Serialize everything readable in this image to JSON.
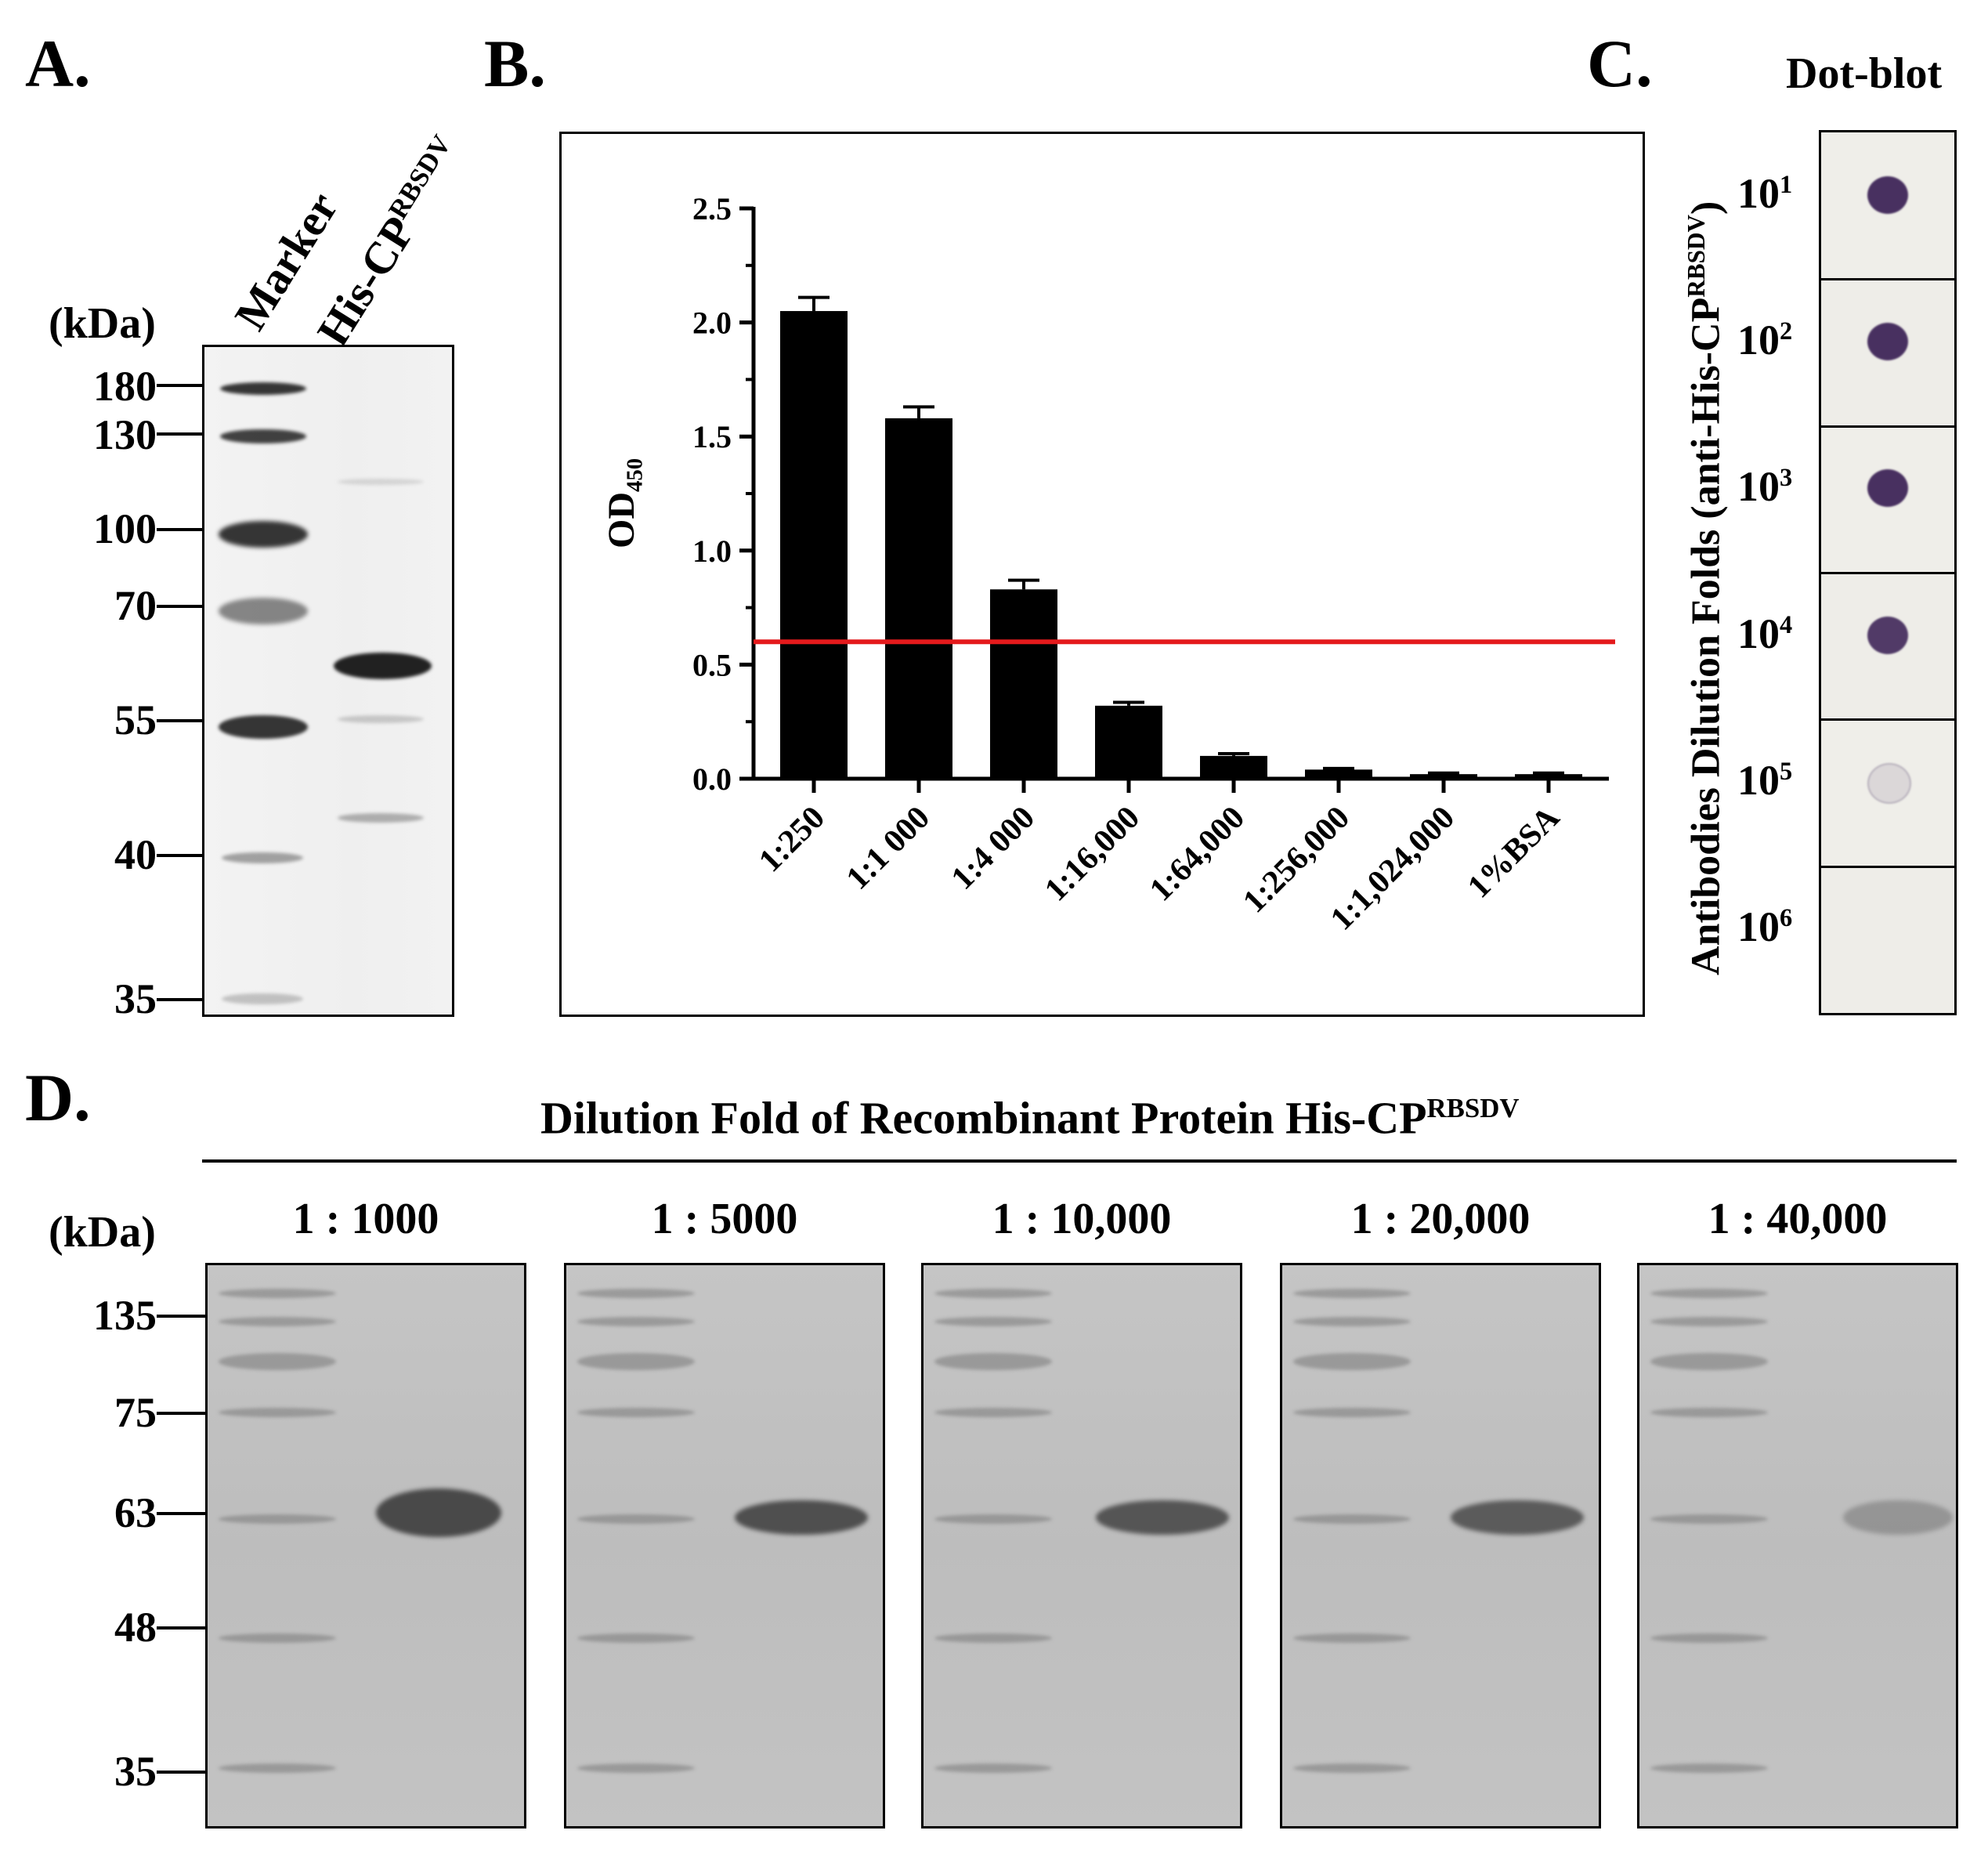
{
  "panels": {
    "a": {
      "letter": "A.",
      "kda_label": "(kDa)",
      "lane_labels": [
        "Marker",
        "His-CP",
        "RBSDV"
      ],
      "markers": [
        "180",
        "130",
        "100",
        "70",
        "55",
        "40",
        "35"
      ]
    },
    "b": {
      "letter": "B.",
      "ylabel_main": "OD",
      "ylabel_sub": "450",
      "cutoff_line_color": "#e41a1c"
    },
    "c": {
      "letter": "C.",
      "title": "Dot-blot",
      "ylabel_main": "Antibodies Dilution Folds (anti-His-CP",
      "ylabel_sup": "RBSDV",
      "ylabel_end": ")",
      "rows": [
        {
          "base": "10",
          "exp": "1",
          "intensity": 1.0
        },
        {
          "base": "10",
          "exp": "2",
          "intensity": 1.0
        },
        {
          "base": "10",
          "exp": "3",
          "intensity": 1.0
        },
        {
          "base": "10",
          "exp": "4",
          "intensity": 0.95
        },
        {
          "base": "10",
          "exp": "5",
          "intensity": 0.12
        },
        {
          "base": "10",
          "exp": "6",
          "intensity": 0.0
        }
      ]
    },
    "d": {
      "letter": "D.",
      "title_main": "Dilution Fold of Recombinant Protein His-CP",
      "title_sup": "RBSDV",
      "kda_label": "(kDa)",
      "markers": [
        "135",
        "75",
        "63",
        "48",
        "35"
      ],
      "blots": [
        {
          "label": "1 : 1000",
          "band_intensity": 1.0
        },
        {
          "label": "1 : 5000",
          "band_intensity": 0.95
        },
        {
          "label": "1 : 10,000",
          "band_intensity": 0.9
        },
        {
          "label": "1 : 20,000",
          "band_intensity": 0.85
        },
        {
          "label": "1 : 40,000",
          "band_intensity": 0.35
        }
      ]
    }
  },
  "chart_data": {
    "type": "bar",
    "title": "",
    "xlabel": "",
    "ylabel": "OD450",
    "ylim": [
      0,
      2.5
    ],
    "yticks": [
      "0.0",
      "0.5",
      "1.0",
      "1.5",
      "2.0",
      "2.5"
    ],
    "categories": [
      "1:250",
      "1:1 000",
      "1:4 000",
      "1:16,000",
      "1:64,000",
      "1:256,000",
      "1:1,024,000",
      "1%BSA"
    ],
    "values": [
      2.05,
      1.58,
      0.83,
      0.32,
      0.1,
      0.04,
      0.02,
      0.02
    ],
    "errors": [
      0.06,
      0.05,
      0.04,
      0.015,
      0.01,
      0.005,
      0.005,
      0.005
    ],
    "cutoff": 0.6,
    "bar_color": "#000000"
  }
}
